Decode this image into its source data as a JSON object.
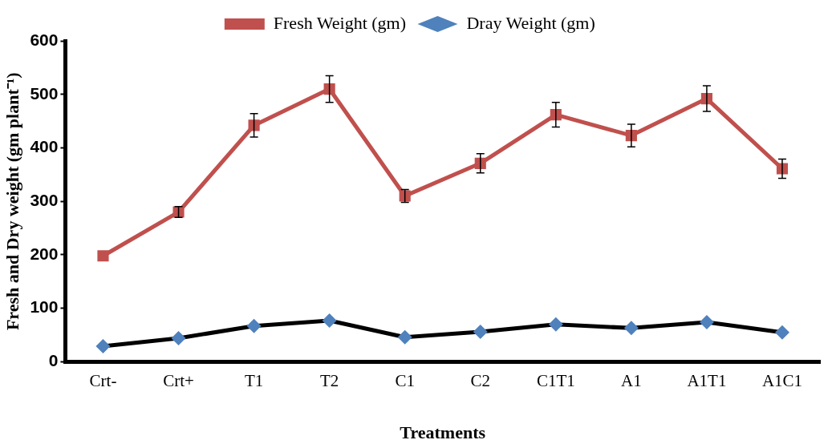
{
  "chart_data": {
    "type": "line",
    "xlabel": "Treatments",
    "ylabel": "Fresh and Dry weight (gm plant⁻¹)",
    "categories": [
      "Crt-",
      "Crt+",
      "T1",
      "T2",
      "C1",
      "C2",
      "C1T1",
      "A1",
      "A1T1",
      "A1C1"
    ],
    "series": [
      {
        "name": "Fresh Weight (gm)",
        "color": "#c0504d",
        "marker": "square",
        "values": [
          198,
          280,
          442,
          510,
          310,
          371,
          462,
          423,
          492,
          361
        ],
        "errors": [
          null,
          10,
          22,
          25,
          12,
          18,
          23,
          21,
          24,
          18
        ]
      },
      {
        "name": "Dray Weight (gm)",
        "color": "#000000",
        "marker": "diamond",
        "values": [
          29,
          44,
          67,
          77,
          46,
          56,
          70,
          63,
          74,
          55
        ]
      }
    ],
    "ylim": [
      0,
      600
    ],
    "yticks": [
      0,
      100,
      200,
      300,
      400,
      500,
      600
    ],
    "grid": false,
    "legend": "top",
    "line_style": "solid"
  }
}
